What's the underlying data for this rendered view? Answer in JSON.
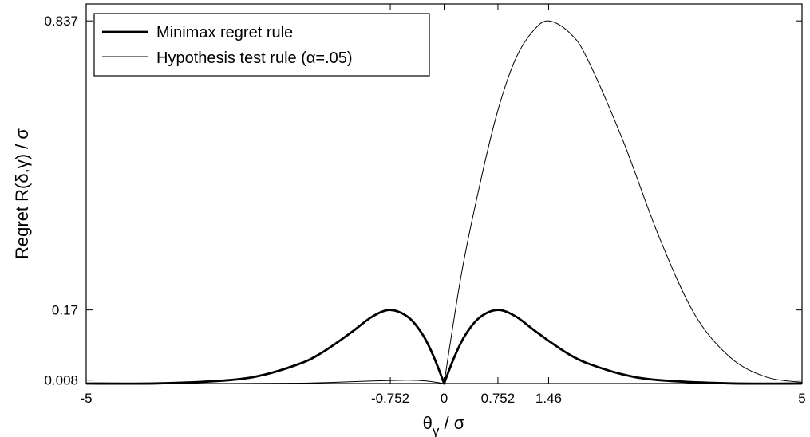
{
  "chart_data": {
    "type": "line",
    "xlabel": "θγ / σ",
    "xlabel_parts": {
      "main": "θ",
      "sub": "γ",
      "rest": " / σ"
    },
    "ylabel": "Regret R(δ,γ) / σ",
    "xlim": [
      -5,
      5
    ],
    "ylim": [
      0,
      0.876
    ],
    "x_ticks": [
      -5,
      -0.752,
      0,
      0.752,
      1.46,
      5
    ],
    "x_tick_labels": [
      "-5",
      "-0.752",
      "0",
      "0.752",
      "1.46",
      "5"
    ],
    "y_ticks": [
      0.008,
      0.17,
      0.837
    ],
    "y_tick_labels": [
      "0.008",
      "0.17",
      "0.837"
    ],
    "grid": false,
    "legend_position": "top-left",
    "series": [
      {
        "name": "Minimax regret rule",
        "style": "thick",
        "x": [
          -5,
          -4,
          -3,
          -2.5,
          -2,
          -1.75,
          -1.5,
          -1.25,
          -1,
          -0.752,
          -0.5,
          -0.3,
          -0.15,
          0,
          0.15,
          0.3,
          0.5,
          0.752,
          1,
          1.25,
          1.5,
          1.75,
          2,
          2.5,
          3,
          4,
          5
        ],
        "values": [
          0,
          0.0004,
          0.008,
          0.021,
          0.047,
          0.067,
          0.094,
          0.124,
          0.155,
          0.17,
          0.153,
          0.113,
          0.064,
          0,
          0.064,
          0.113,
          0.153,
          0.17,
          0.155,
          0.124,
          0.094,
          0.067,
          0.047,
          0.021,
          0.008,
          0.0004,
          0
        ]
      },
      {
        "name": "Hypothesis test rule (α=.05)",
        "style": "thin",
        "x": [
          -5,
          -3,
          -2,
          -1.5,
          -1,
          -0.5,
          -0.25,
          0,
          0.25,
          0.5,
          0.75,
          1,
          1.25,
          1.46,
          1.75,
          2,
          2.5,
          3,
          3.5,
          4,
          4.5,
          5
        ],
        "values": [
          0,
          0,
          0.001,
          0.003,
          0.006,
          0.008,
          0.006,
          0,
          0.26,
          0.46,
          0.63,
          0.75,
          0.815,
          0.837,
          0.81,
          0.75,
          0.56,
          0.34,
          0.16,
          0.06,
          0.015,
          0.003
        ]
      }
    ]
  }
}
